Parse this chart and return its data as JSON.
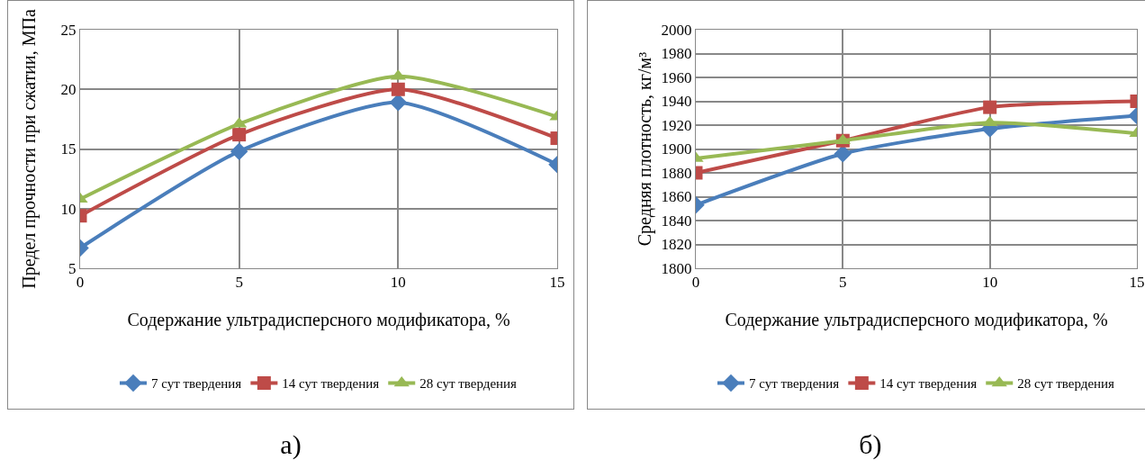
{
  "chart_data": [
    {
      "type": "line",
      "x": [
        0,
        5,
        10,
        15
      ],
      "xlabel": "Содержание ультрадисперсного модификатора, %",
      "ylabel": "Предел прочности при сжатии, МПа",
      "xlim": [
        0,
        15
      ],
      "xticks": [
        0,
        5,
        10,
        15
      ],
      "ylim": [
        5,
        25
      ],
      "yticks": [
        5,
        10,
        15,
        20,
        25
      ],
      "grid": true,
      "legend": "bottom",
      "annotations": [
        "а)"
      ],
      "series": [
        {
          "name": "7 сут твердения",
          "color": "#4a7ebb",
          "marker": "diamond",
          "values": [
            6.7,
            14.8,
            18.9,
            13.7
          ]
        },
        {
          "name": "14 сут твердения",
          "color": "#be4b48",
          "marker": "square",
          "values": [
            9.4,
            16.2,
            20.0,
            15.9
          ]
        },
        {
          "name": "28 сут твердения",
          "color": "#98b954",
          "marker": "triangle",
          "values": [
            10.8,
            17.1,
            21.1,
            17.7
          ]
        }
      ]
    },
    {
      "type": "line",
      "x": [
        0,
        5,
        10,
        15
      ],
      "xlabel": "Содержание ультрадисперсного модификатора, %",
      "ylabel": "Средняя плотность, кг/м³",
      "xlim": [
        0,
        15
      ],
      "xticks": [
        0,
        5,
        10,
        15
      ],
      "ylim": [
        1800,
        2000
      ],
      "yticks": [
        1800,
        1820,
        1840,
        1860,
        1880,
        1900,
        1920,
        1940,
        1960,
        1980,
        2000
      ],
      "grid": true,
      "legend": "bottom",
      "annotations": [
        "б)"
      ],
      "series": [
        {
          "name": "7 сут твердения",
          "color": "#4a7ebb",
          "marker": "diamond",
          "values": [
            1853,
            1896,
            1917,
            1928
          ]
        },
        {
          "name": "14 сут твердения",
          "color": "#be4b48",
          "marker": "square",
          "values": [
            1880,
            1907,
            1935,
            1940
          ]
        },
        {
          "name": "28 сут твердения",
          "color": "#98b954",
          "marker": "triangle",
          "values": [
            1892,
            1907,
            1922,
            1913
          ]
        }
      ]
    }
  ]
}
